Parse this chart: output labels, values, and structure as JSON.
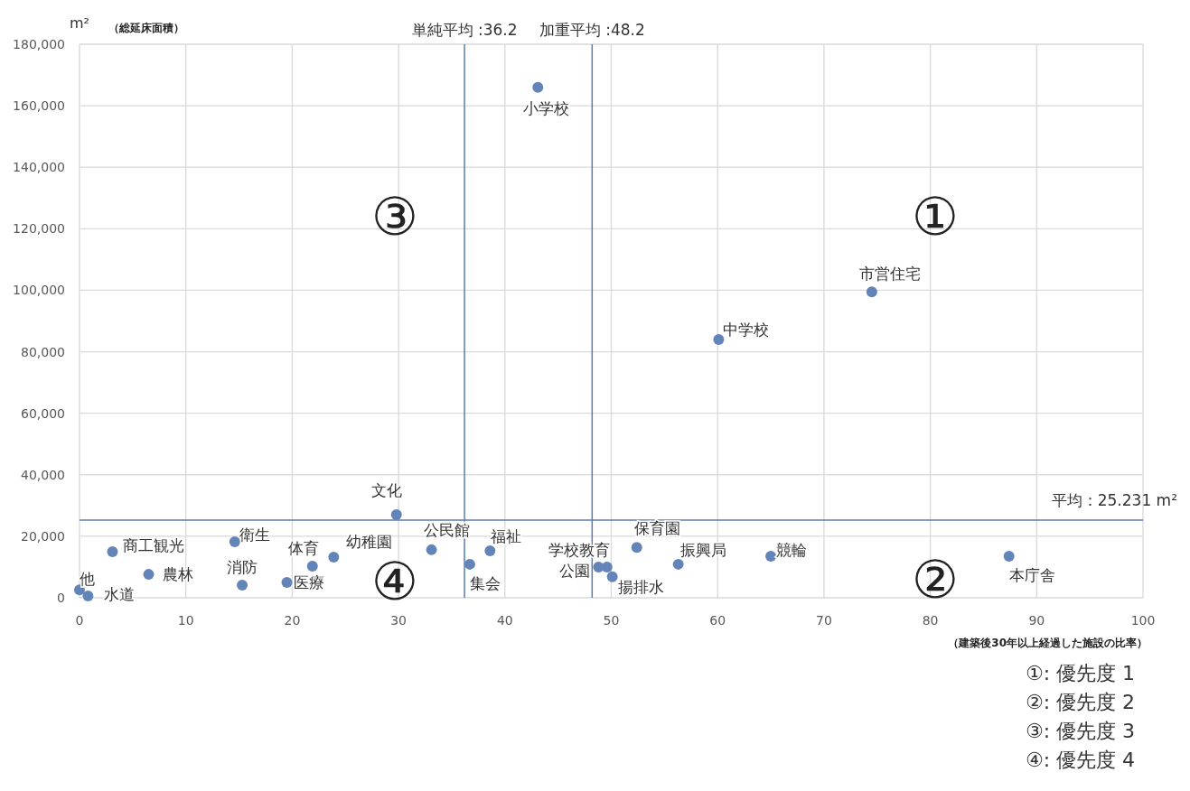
{
  "chart_data": {
    "type": "scatter",
    "ylabel": "（総延床面積）",
    "xlabel": "（建築後30年以上経過した施設の比率）",
    "xlim": [
      0,
      100
    ],
    "ylim": [
      0,
      180000
    ],
    "xticks": [
      0,
      10,
      20,
      30,
      40,
      50,
      60,
      70,
      80,
      90,
      100
    ],
    "yticks": [
      0,
      {
        "value": 20000,
        "label": "20,000"
      },
      {
        "value": 40000,
        "label": "40,000"
      },
      {
        "value": 60000,
        "label": "60,000"
      },
      {
        "value": 80000,
        "label": "80,000"
      },
      {
        "value": 100000,
        "label": "100,000"
      },
      {
        "value": 120000,
        "label": "120,000"
      },
      {
        "value": 140000,
        "label": "140,000"
      },
      {
        "value": 160000,
        "label": "160,000"
      },
      {
        "value": 180000,
        "label": "180,000"
      }
    ],
    "grid": true,
    "marker": "circle",
    "series": [
      {
        "name": "他",
        "color": "#6384b8",
        "x": [
          0
        ],
        "values": [
          2600
        ]
      },
      {
        "name": "水道",
        "color": "#6384b8",
        "x": [
          0.8
        ],
        "values": [
          600
        ]
      },
      {
        "name": "商工観光",
        "color": "#6384b8",
        "x": [
          3.1
        ],
        "values": [
          15000
        ]
      },
      {
        "name": "農林",
        "color": "#6384b8",
        "x": [
          6.5
        ],
        "values": [
          7600
        ]
      },
      {
        "name": "衛生",
        "color": "#6384b8",
        "x": [
          14.6
        ],
        "values": [
          18200
        ]
      },
      {
        "name": "消防",
        "color": "#6384b8",
        "x": [
          15.3
        ],
        "values": [
          4100
        ]
      },
      {
        "name": "医療",
        "color": "#6384b8",
        "x": [
          19.5
        ],
        "values": [
          5000
        ]
      },
      {
        "name": "体育",
        "color": "#6384b8",
        "x": [
          21.9
        ],
        "values": [
          10300
        ]
      },
      {
        "name": "幼稚園",
        "color": "#6384b8",
        "x": [
          23.9
        ],
        "values": [
          13200
        ]
      },
      {
        "name": "文化",
        "color": "#6384b8",
        "x": [
          29.8
        ],
        "values": [
          27000
        ]
      },
      {
        "name": "公民館",
        "color": "#6384b8",
        "x": [
          33.1
        ],
        "values": [
          15600
        ]
      },
      {
        "name": "集会",
        "color": "#6384b8",
        "x": [
          36.7
        ],
        "values": [
          10900
        ]
      },
      {
        "name": "福祉",
        "color": "#6384b8",
        "x": [
          38.6
        ],
        "values": [
          15300
        ]
      },
      {
        "name": "公園",
        "color": "#6384b8",
        "x": [
          48.8
        ],
        "values": [
          10000
        ]
      },
      {
        "name": "学校教育",
        "color": "#6384b8",
        "x": [
          49.6
        ],
        "values": [
          10000
        ]
      },
      {
        "name": "揚排水",
        "color": "#6384b8",
        "x": [
          50.1
        ],
        "values": [
          6800
        ]
      },
      {
        "name": "保育園",
        "color": "#6384b8",
        "x": [
          52.4
        ],
        "values": [
          16400
        ]
      },
      {
        "name": "振興局",
        "color": "#6384b8",
        "x": [
          56.3
        ],
        "values": [
          10900
        ]
      },
      {
        "name": "競輪",
        "color": "#6384b8",
        "x": [
          65.0
        ],
        "values": [
          13500
        ]
      },
      {
        "name": "本庁舎",
        "color": "#6384b8",
        "x": [
          87.4
        ],
        "values": [
          13500
        ]
      },
      {
        "name": "中学校",
        "color": "#6384b8",
        "x": [
          60.1
        ],
        "values": [
          84000
        ]
      },
      {
        "name": "市営住宅",
        "color": "#6384b8",
        "x": [
          74.5
        ],
        "values": [
          99500
        ]
      },
      {
        "name": "小学校",
        "color": "#6384b8",
        "x": [
          43.1
        ],
        "values": [
          166000
        ]
      }
    ],
    "ref_lines": [
      {
        "axis": "x",
        "value": 36.2,
        "label": "単純平均 :36.2",
        "color": "#5a7db0"
      },
      {
        "axis": "x",
        "value": 48.2,
        "label": "加重平均 :48.2",
        "color": "#5a7db0"
      },
      {
        "axis": "y",
        "value": 25231,
        "label": "平均：25.231 m²",
        "color": "#5a7db0"
      }
    ],
    "annotations": [
      "m²",
      "①",
      "②",
      "③",
      "④",
      "①: 優先度 1",
      "②: 優先度 2",
      "③: 優先度 3",
      "④: 優先度 4"
    ]
  }
}
